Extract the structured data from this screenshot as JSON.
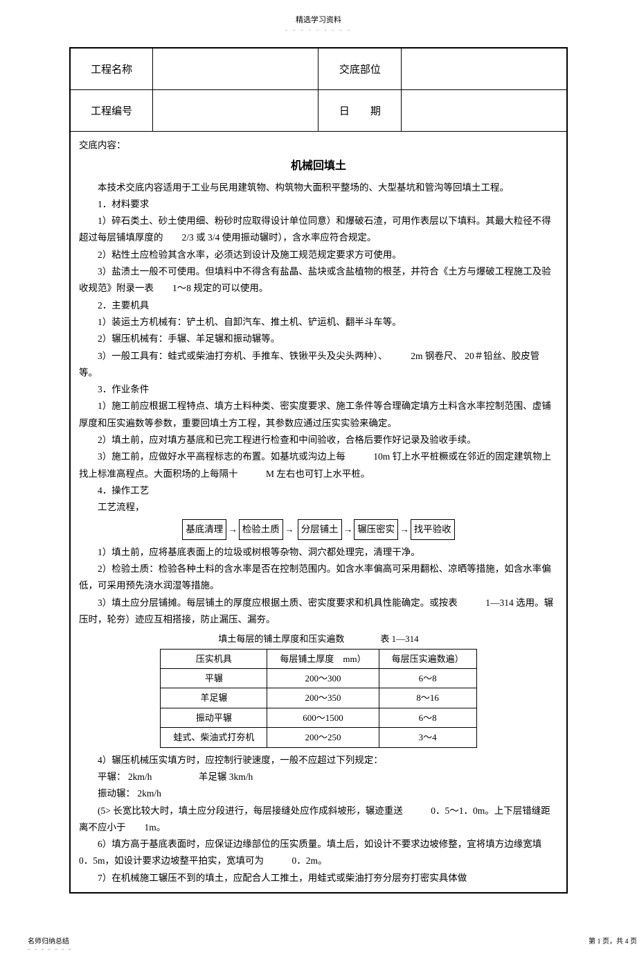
{
  "header": {
    "label": "精选学习资料",
    "dots": "- - - - - - - - -"
  },
  "form": {
    "project_name_label": "工程名称",
    "project_name_value": "",
    "disclosure_part_label": "交底部位",
    "disclosure_part_value": "",
    "project_code_label": "工程编号",
    "project_code_value": "",
    "date_label": "日　　期",
    "date_value": ""
  },
  "content": {
    "intro_label": "交底内容：",
    "title": "机械回填土",
    "intro_text": "本技术交底内容适用于工业与民用建筑物、构筑物大面积平整场的、大型基坑和管沟等回填土工程。",
    "s1_title": "1．材料要求",
    "s1_1": "1）碎石类土、砂土使用细、粉砂时应取得设计单位同意）和爆破石渣，可用作表层以下填料。其最大粒径不得超过每层铺填厚度的　　2/3 或 3/4 使用振动辗时），含水率应符合规定。",
    "s1_2": "2）粘性土应检验其含水率，必须达到设计及施工规范规定要求方可使用。",
    "s1_3": "3）盐渍土一般不可使用。但填料中不得含有盐晶、盐块或含盐植物的根茎，并符合《土方与爆破工程施工及验收规范》附录一表　　1～8 规定的可以使用。",
    "s2_title": "2．主要机具",
    "s2_1": "1）装运土方机械有：铲土机、自卸汽车、推土机、铲运机、翻半斗车等。",
    "s2_2": "2）辗压机械有：手辗、羊足辗和振动辗等。",
    "s2_3": "3）一般工具有：蛙式或柴油打夯机、手推车、铁锹平头及尖头两种）、　　　2m 钢卷尺、 20＃铅丝、胶皮管等。",
    "s3_title": "3．作业条件",
    "s3_1": "1）施工前应根据工程特点、填方土料种类、密实度要求、施工条件等合理确定填方土料含水率控制范围、虚铺厚度和压实遍数等参数，重要回填土方工程，其参数应通过压实实验来确定。",
    "s3_2": "2）填土前，应对填方基底和已完工程进行检查和中间验收，合格后要作好记录及验收手续。",
    "s3_3": "3）施工前，应做好水平高程标志的布置。如基坑或沟边上每　　　10m 钉上水平桩橛或在邻近的固定建筑物上找上标准高程点。大面积场的上每隔十　　　M 左右也可钉上水平桩。",
    "s4_title": "4．操作工艺",
    "s4_sub": "工艺流程，",
    "flow": [
      "基底清理",
      "检验土质",
      "分层铺土",
      "辗压密实",
      "找平验收"
    ],
    "s4_1": "1）填土前，应将基底表面上的垃圾或树根等杂物、洞穴都处理完，清理干净。",
    "s4_2": "2）检验土质：检验各种土料的含水率是否在控制范围内。如含水率偏高可采用翻松、凉晒等措施，如含水率偏低，可采用预先浇水润湿等措施。",
    "s4_3": "3）填土应分层铺摊。每层铺土的厚度应根据土质、密实度要求和机具性能确定。或按表　　　1—314 选用。辗压时，轮夯）迹应互相搭接，防止漏压、漏夯。",
    "table_caption": "填土每层的铺土厚度和压实遍数　　　　表 1—314",
    "table": {
      "headers": [
        "压实机具",
        "每层铺土厚度　mm）",
        "每层压实遍数遍）"
      ],
      "rows": [
        [
          "平辗",
          "200～300",
          "6～8"
        ],
        [
          "羊足辗",
          "200～350",
          "8～16"
        ],
        [
          "振动平辗",
          "600～1500",
          "6～8"
        ],
        [
          "蛙式、柴油式打夯机",
          "200～250",
          "3～4"
        ]
      ]
    },
    "s4_4": "4）辗压机械压实填方时，应控制行驶速度，一般不应超过下列规定：",
    "s4_4a": "平辗： 2km/h　　　　　羊足辗  3km/h",
    "s4_4b": "振动辗： 2km/h",
    "s4_5": "(5> 长宽比较大时，填土应分段进行，每层接缝处应作成斜坡形，辗迹重送　　　0．5～1．0m。上下层错缝距离不应小于　　1m。",
    "s4_6": "6）填方高于基底表面时，应保证边缘部位的压实质量。填土后，如设计不要求边坡修整，宜将填方边缘宽填　0．5m，如设计要求边坡整平拍实，宽填可为　　　0．2m。",
    "s4_7": "7）在机械施工辗压不到的填土，应配合人工推土，用蛙式或柴油打夯分层夯打密实具体做"
  },
  "footer": {
    "left": "名师归纳总结",
    "left_dots": "- - - - - - -",
    "right": "第 1 页，共 4 页"
  }
}
